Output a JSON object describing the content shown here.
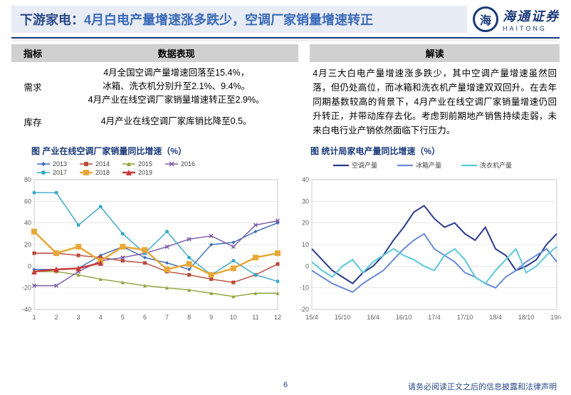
{
  "header": {
    "title_main": "下游家电：",
    "title_sub": "4月白电产量增速涨多跌少，空调厂家销量增速转正",
    "logo_name": "海通证券",
    "logo_sub": "HAITONG"
  },
  "table": {
    "head_indicator": "指标",
    "head_data": "数据表现",
    "head_interpret": "解读",
    "rows": [
      {
        "indicator": "需求",
        "data": "4月全国空调产量增速回落至15.4%，\n冰箱、洗衣机分别升至2.1%、9.4%。\n4月产业在线空调厂家销量增速转正至2.9%。"
      },
      {
        "indicator": "库存",
        "data": "4月产业在线空调厂家库销比降至0.5。"
      }
    ],
    "interpret": "4月三大白电产量增速涨多跌少，其中空调产量增速虽然回落，但仍处高位，而冰箱和洗衣机产量增速双双回升。在去年同期基数较高的背景下，4月产业在线空调厂家销量增速仍回升转正，并带动库存去化。考虑到前期地产销售持续走弱，未来白电行业产销依然面临下行压力。"
  },
  "chart_left": {
    "title": "图 产业在线空调厂家销量同比增速（%）",
    "ylim": [
      -40,
      80
    ],
    "ytick_step": 20,
    "xlabels": [
      "1",
      "2",
      "3",
      "4",
      "5",
      "6",
      "7",
      "8",
      "9",
      "10",
      "11",
      "12"
    ],
    "background": "#ffffff",
    "grid_color": "#d8d8d8",
    "legend": [
      {
        "label": "2013",
        "color": "#3a6ab8",
        "marker": "diamond"
      },
      {
        "label": "2014",
        "color": "#b84a3a",
        "marker": "square"
      },
      {
        "label": "2015",
        "color": "#8aa63a",
        "marker": "triangle"
      },
      {
        "label": "2016",
        "color": "#7a5aa8",
        "marker": "x"
      },
      {
        "label": "2017",
        "color": "#3aa8c8",
        "marker": "circle"
      },
      {
        "label": "2018",
        "color": "#e8a838",
        "marker": "square",
        "thick": true
      },
      {
        "label": "2019",
        "color": "#c83a3a",
        "marker": "triangle",
        "thick": true
      }
    ],
    "series": {
      "2013": [
        -3,
        -3,
        -2,
        10,
        18,
        8,
        3,
        -3,
        20,
        22,
        32,
        40
      ],
      "2014": [
        12,
        12,
        10,
        8,
        5,
        3,
        -5,
        -8,
        -12,
        -15,
        -8,
        2
      ],
      "2015": [
        -5,
        -5,
        -8,
        -12,
        -15,
        -18,
        -20,
        -22,
        -25,
        -28,
        -25,
        -25
      ],
      "2016": [
        -18,
        -18,
        -5,
        5,
        8,
        12,
        18,
        25,
        28,
        18,
        38,
        42
      ],
      "2017": [
        68,
        68,
        38,
        55,
        30,
        12,
        32,
        8,
        -8,
        5,
        -8,
        -14
      ],
      "2018": [
        32,
        12,
        18,
        5,
        18,
        15,
        -3,
        2,
        -8,
        -2,
        8,
        12
      ],
      "2019": [
        -5,
        -3,
        -2,
        3
      ]
    }
  },
  "chart_right": {
    "title": "图 统计局家电产量同比增速（%）",
    "ylim": [
      -20,
      40
    ],
    "ytick_step": 10,
    "xlabels": [
      "15/4",
      "15/10",
      "16/4",
      "16/10",
      "17/4",
      "17/10",
      "18/4",
      "18/10",
      "19/4"
    ],
    "background": "#ffffff",
    "grid_color": "#d8d8d8",
    "legend": [
      {
        "label": "空调产量",
        "color": "#2a3a8a"
      },
      {
        "label": "冰箱产量",
        "color": "#6a8ad8"
      },
      {
        "label": "洗衣机产量",
        "color": "#5ac8d8"
      }
    ],
    "series": {
      "ac": [
        8,
        3,
        -2,
        -5,
        -8,
        -3,
        0,
        5,
        12,
        18,
        25,
        28,
        22,
        18,
        20,
        15,
        12,
        18,
        8,
        5,
        -2,
        0,
        3,
        10,
        15
      ],
      "fridge": [
        -2,
        -5,
        -8,
        -10,
        -12,
        -8,
        -5,
        -2,
        3,
        8,
        12,
        15,
        8,
        5,
        2,
        -3,
        -5,
        -8,
        -10,
        -5,
        -2,
        2,
        5,
        8,
        2
      ],
      "washer": [
        2,
        -2,
        -5,
        0,
        3,
        -3,
        2,
        5,
        8,
        5,
        3,
        0,
        -2,
        5,
        8,
        3,
        -5,
        -8,
        -2,
        3,
        8,
        -3,
        0,
        5,
        9
      ]
    }
  },
  "footer": {
    "page": "6",
    "disclaimer": "请务必阅读正文之后的信息披露和法律声明"
  }
}
